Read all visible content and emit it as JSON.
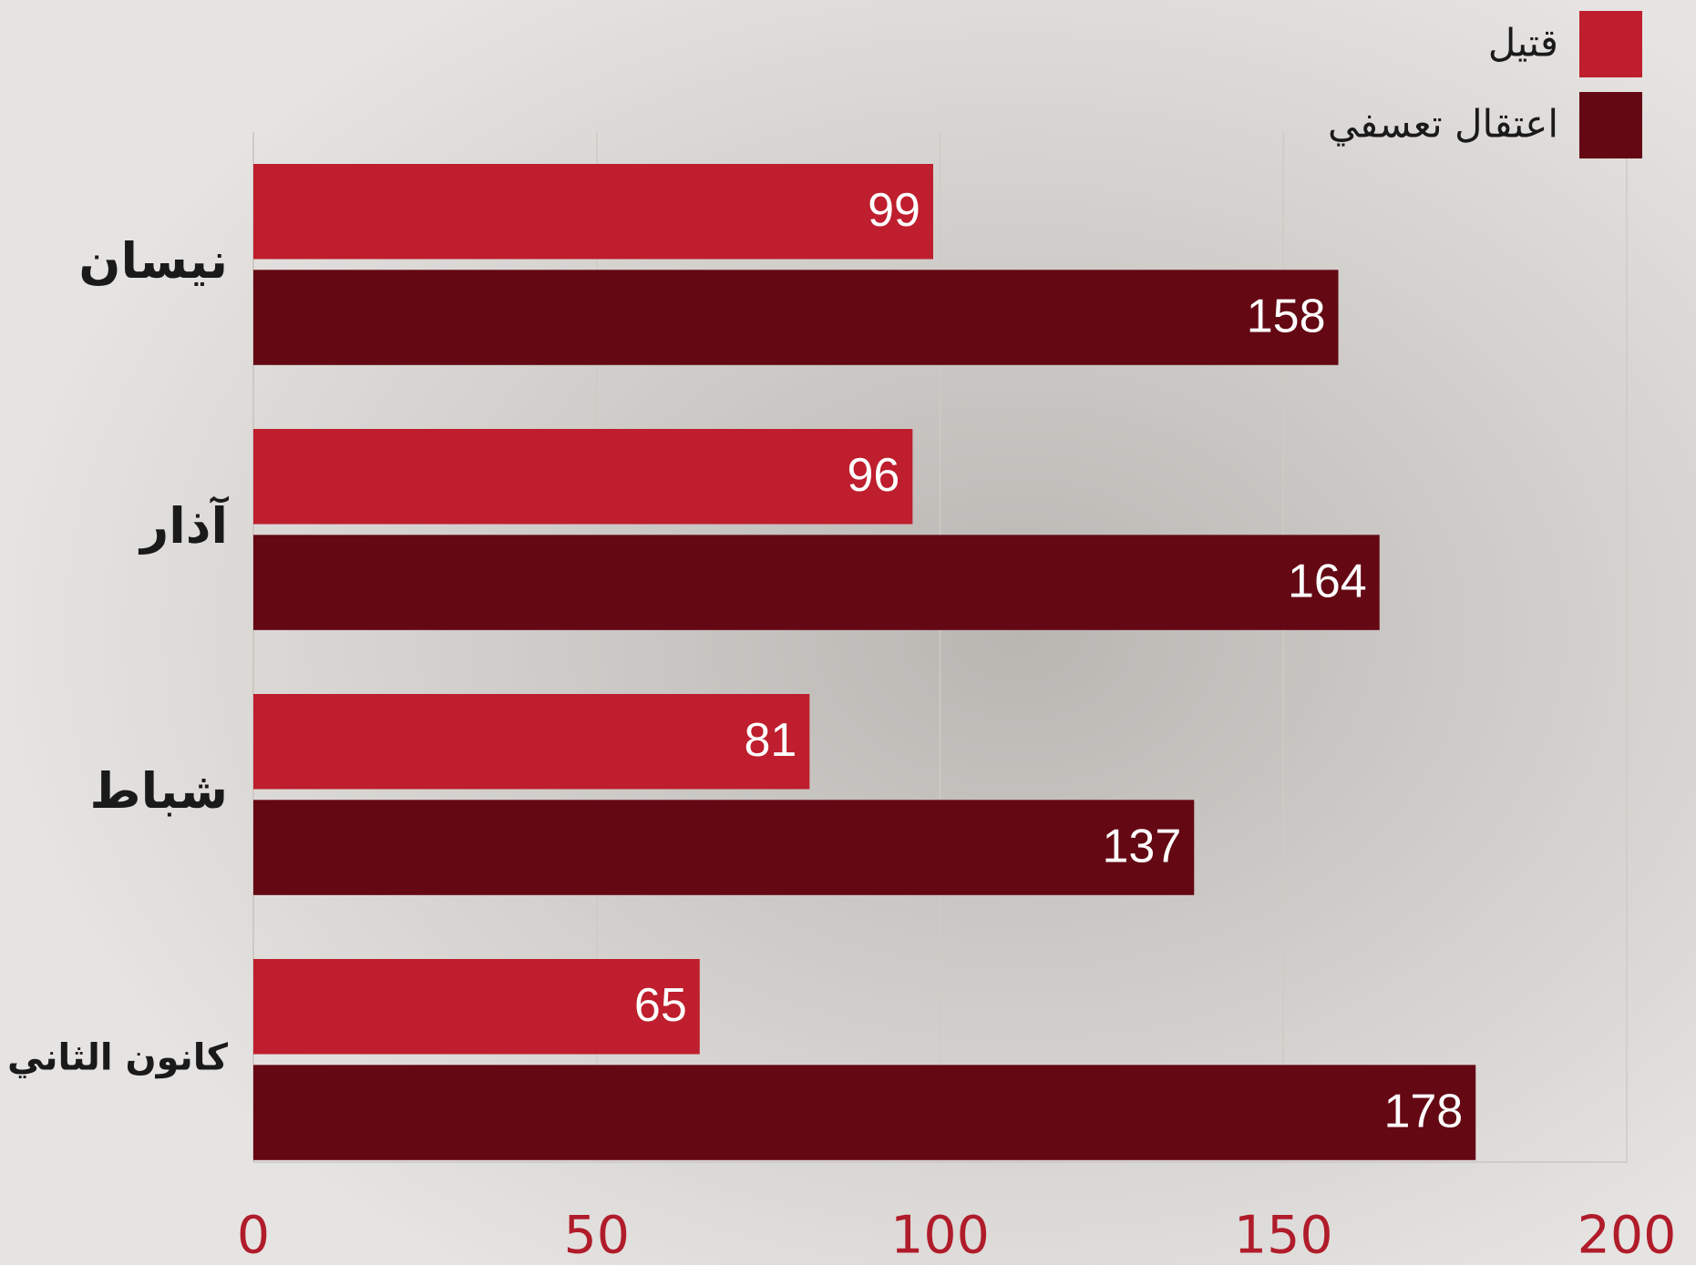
{
  "chart_data": {
    "type": "bar",
    "orientation": "horizontal",
    "categories": [
      "نيسان",
      "آذار",
      "شباط",
      "كانون الثاني"
    ],
    "series": [
      {
        "name": "قتيل",
        "color": "#be1e2d",
        "values": [
          99,
          96,
          81,
          65
        ]
      },
      {
        "name": "اعتقال تعسفي",
        "color": "#640814",
        "values": [
          158,
          164,
          137,
          178
        ]
      }
    ],
    "xlim": [
      0,
      200
    ],
    "xticks": [
      0,
      50,
      100,
      150,
      200
    ],
    "grid": true
  }
}
